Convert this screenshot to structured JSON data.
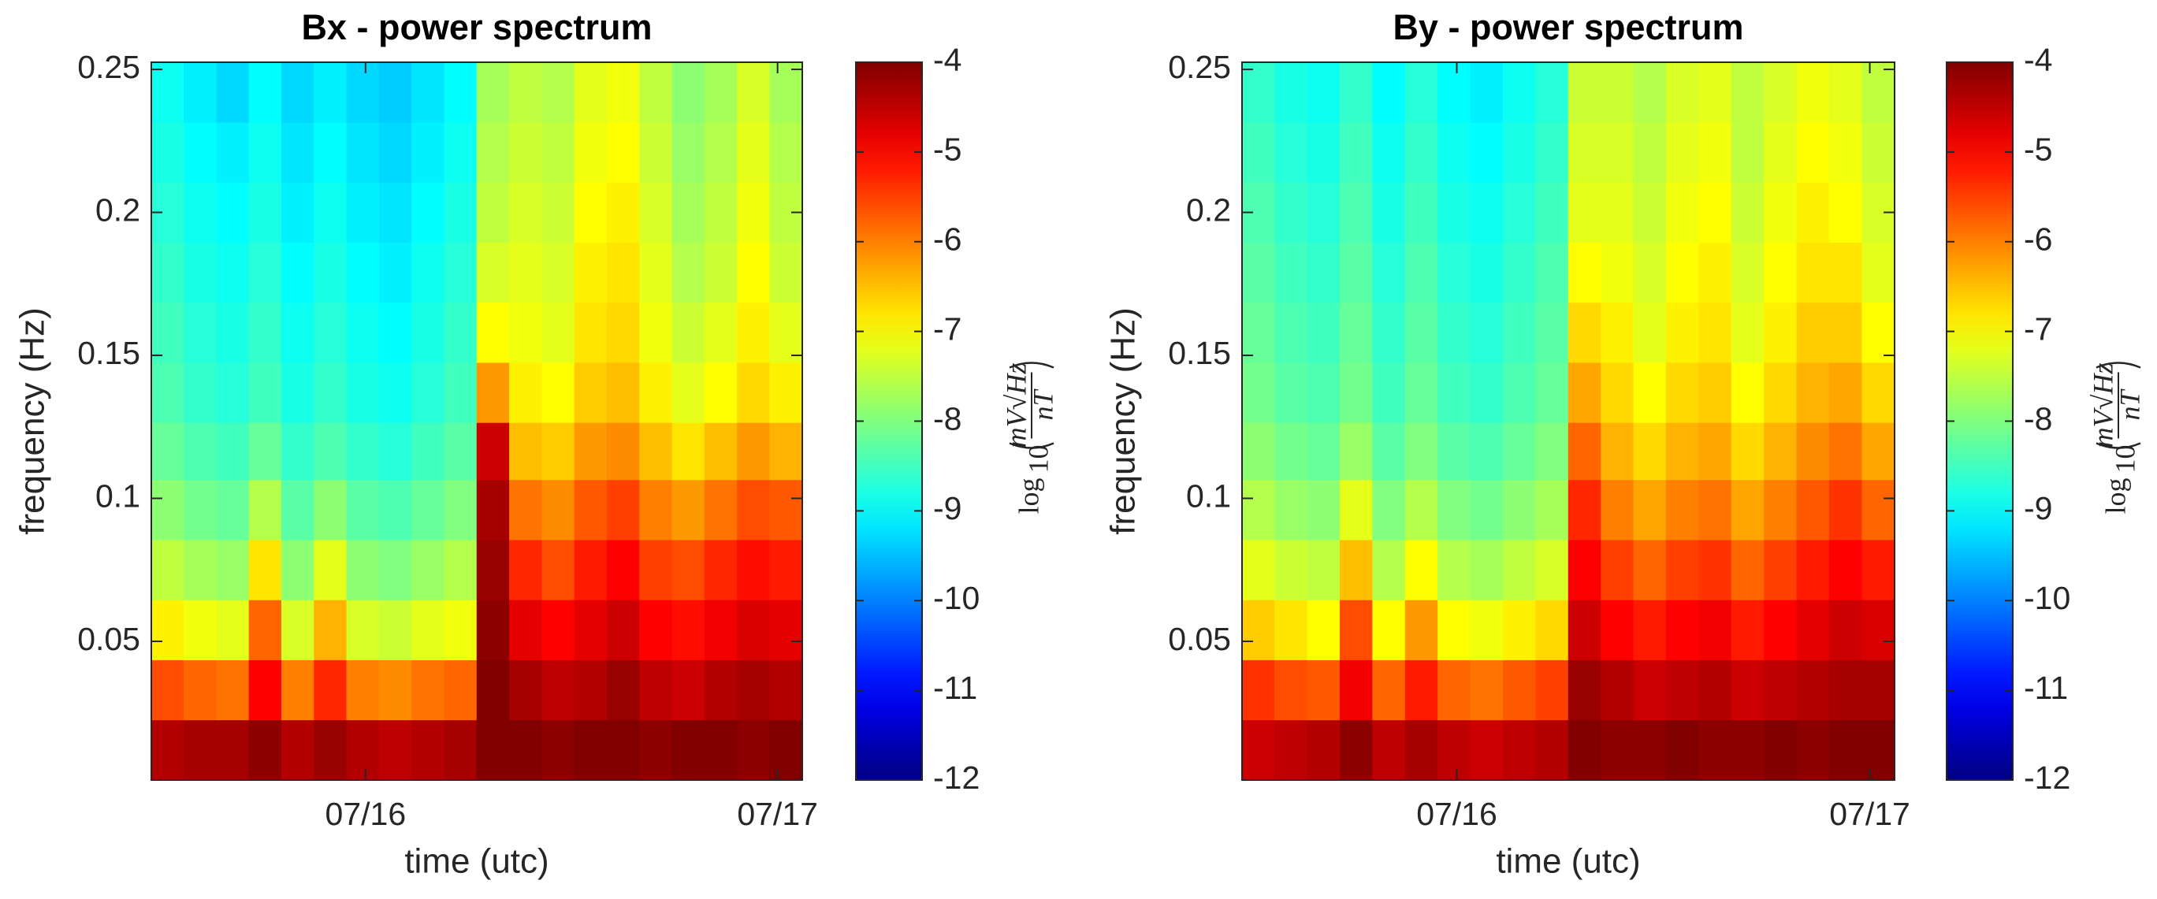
{
  "chart_data": [
    {
      "type": "heatmap",
      "title": "Bx - power spectrum",
      "x_label": "time (utc)",
      "y_label": "frequency (Hz)",
      "colormap": "jet",
      "x": [
        15.52,
        15.599,
        15.678,
        15.757,
        15.836,
        15.915,
        15.994,
        16.073,
        16.152,
        16.231,
        16.31,
        16.389,
        16.468,
        16.547,
        16.626,
        16.705,
        16.784,
        16.863,
        16.942,
        17.021
      ],
      "y": [
        0.012,
        0.033,
        0.054,
        0.075,
        0.096,
        0.117,
        0.137,
        0.158,
        0.179,
        0.2,
        0.221,
        0.242
      ],
      "z": [
        [
          -4.4,
          -4.3,
          -4.3,
          -4.1,
          -4.4,
          -4.2,
          -4.4,
          -4.5,
          -4.4,
          -4.3,
          -4.0,
          -4.0,
          -4.1,
          -4.0,
          -4.0,
          -4.1,
          -4.0,
          -4.0,
          -4.1,
          -4.0
        ],
        [
          -5.6,
          -5.8,
          -5.9,
          -5.0,
          -6.0,
          -5.3,
          -6.0,
          -6.1,
          -5.9,
          -5.8,
          -4.0,
          -4.3,
          -4.5,
          -4.4,
          -4.2,
          -4.5,
          -4.6,
          -4.4,
          -4.3,
          -4.4
        ],
        [
          -6.9,
          -7.1,
          -7.2,
          -5.8,
          -7.3,
          -6.4,
          -7.3,
          -7.4,
          -7.2,
          -7.1,
          -4.1,
          -4.8,
          -5.0,
          -4.8,
          -4.6,
          -5.0,
          -5.1,
          -4.9,
          -4.7,
          -4.8
        ],
        [
          -7.5,
          -7.7,
          -7.8,
          -6.8,
          -7.9,
          -7.2,
          -7.9,
          -8.0,
          -7.8,
          -7.6,
          -4.2,
          -5.3,
          -5.6,
          -5.2,
          -5.0,
          -5.5,
          -5.6,
          -5.3,
          -5.1,
          -5.2
        ],
        [
          -7.9,
          -8.1,
          -8.2,
          -7.6,
          -8.3,
          -7.9,
          -8.3,
          -8.4,
          -8.2,
          -8.0,
          -4.3,
          -5.9,
          -6.1,
          -5.7,
          -5.5,
          -6.0,
          -6.2,
          -5.9,
          -5.6,
          -5.7
        ],
        [
          -8.2,
          -8.4,
          -8.5,
          -8.2,
          -8.6,
          -8.4,
          -8.6,
          -8.7,
          -8.5,
          -8.3,
          -4.6,
          -6.5,
          -6.6,
          -6.2,
          -6.1,
          -6.5,
          -6.8,
          -6.5,
          -6.2,
          -6.4
        ],
        [
          -8.4,
          -8.6,
          -8.7,
          -8.5,
          -8.8,
          -8.6,
          -8.8,
          -8.9,
          -8.7,
          -8.5,
          -6.2,
          -6.9,
          -7.0,
          -6.6,
          -6.5,
          -6.9,
          -7.2,
          -7.0,
          -6.7,
          -6.9
        ],
        [
          -8.5,
          -8.7,
          -8.8,
          -8.6,
          -8.9,
          -8.7,
          -8.9,
          -9.0,
          -8.8,
          -8.6,
          -7.0,
          -7.1,
          -7.2,
          -6.8,
          -6.7,
          -7.1,
          -7.4,
          -7.2,
          -6.9,
          -7.2
        ],
        [
          -8.6,
          -8.8,
          -8.9,
          -8.7,
          -9.0,
          -8.8,
          -9.0,
          -9.1,
          -8.9,
          -8.7,
          -7.3,
          -7.2,
          -7.3,
          -6.9,
          -6.8,
          -7.2,
          -7.6,
          -7.4,
          -7.0,
          -7.4
        ],
        [
          -8.7,
          -8.9,
          -9.0,
          -8.8,
          -9.1,
          -8.9,
          -9.1,
          -9.2,
          -9.0,
          -8.8,
          -7.5,
          -7.3,
          -7.4,
          -7.0,
          -6.9,
          -7.3,
          -7.7,
          -7.5,
          -7.1,
          -7.5
        ],
        [
          -8.8,
          -9.0,
          -9.1,
          -8.9,
          -9.2,
          -9.0,
          -9.2,
          -9.3,
          -9.1,
          -8.9,
          -7.6,
          -7.4,
          -7.5,
          -7.1,
          -7.0,
          -7.4,
          -7.8,
          -7.6,
          -7.2,
          -7.6
        ],
        [
          -8.9,
          -9.1,
          -9.3,
          -9.0,
          -9.3,
          -9.1,
          -9.3,
          -9.4,
          -9.2,
          -9.0,
          -7.7,
          -7.5,
          -7.6,
          -7.2,
          -7.1,
          -7.5,
          -7.9,
          -7.7,
          -7.3,
          -7.7
        ]
      ],
      "xlim": [
        15.48,
        17.06
      ],
      "ylim": [
        0.0015,
        0.2525
      ],
      "xticks": [
        {
          "value": 16,
          "label": "07/16"
        },
        {
          "value": 17,
          "label": "07/17"
        }
      ],
      "yticks": [
        0.05,
        0.1,
        0.15,
        0.2,
        0.25
      ],
      "colorbar": {
        "clim": [
          -12,
          -4
        ],
        "ticks": [
          -12,
          -11,
          -10,
          -9,
          -8,
          -7,
          -6,
          -5,
          -4
        ],
        "label": {
          "function": "log",
          "base": "10",
          "numerator": "mV√Hz",
          "denominator": "nT"
        }
      }
    },
    {
      "type": "heatmap",
      "title": "By - power spectrum",
      "x_label": "time (utc)",
      "y_label": "frequency (Hz)",
      "colormap": "jet",
      "x": [
        15.52,
        15.599,
        15.678,
        15.757,
        15.836,
        15.915,
        15.994,
        16.073,
        16.152,
        16.231,
        16.31,
        16.389,
        16.468,
        16.547,
        16.626,
        16.705,
        16.784,
        16.863,
        16.942,
        17.021
      ],
      "y": [
        0.012,
        0.033,
        0.054,
        0.075,
        0.096,
        0.117,
        0.137,
        0.158,
        0.179,
        0.2,
        0.221,
        0.242
      ],
      "z": [
        [
          -4.6,
          -4.5,
          -4.4,
          -4.1,
          -4.5,
          -4.3,
          -4.5,
          -4.6,
          -4.5,
          -4.4,
          -4.0,
          -4.1,
          -4.1,
          -4.0,
          -4.1,
          -4.1,
          -4.0,
          -4.1,
          -4.0,
          -4.0
        ],
        [
          -5.4,
          -5.6,
          -5.7,
          -4.9,
          -5.8,
          -5.2,
          -5.8,
          -5.9,
          -5.7,
          -5.5,
          -4.2,
          -4.4,
          -4.6,
          -4.5,
          -4.4,
          -4.6,
          -4.5,
          -4.4,
          -4.3,
          -4.3
        ],
        [
          -6.6,
          -6.8,
          -7.0,
          -5.6,
          -7.0,
          -6.2,
          -7.0,
          -7.1,
          -6.9,
          -6.7,
          -4.6,
          -5.0,
          -5.2,
          -5.0,
          -4.9,
          -5.2,
          -5.0,
          -4.8,
          -4.6,
          -4.7
        ],
        [
          -7.2,
          -7.4,
          -7.5,
          -6.5,
          -7.6,
          -7.0,
          -7.6,
          -7.7,
          -7.5,
          -7.3,
          -5.0,
          -5.5,
          -5.8,
          -5.5,
          -5.4,
          -5.8,
          -5.5,
          -5.2,
          -5.0,
          -5.2
        ],
        [
          -7.6,
          -7.8,
          -7.9,
          -7.2,
          -8.0,
          -7.6,
          -8.0,
          -8.1,
          -7.9,
          -7.7,
          -5.3,
          -6.0,
          -6.3,
          -6.0,
          -5.9,
          -6.3,
          -6.0,
          -5.7,
          -5.4,
          -5.8
        ],
        [
          -7.9,
          -8.1,
          -8.2,
          -7.8,
          -8.3,
          -8.0,
          -8.3,
          -8.4,
          -8.2,
          -8.0,
          -5.8,
          -6.4,
          -6.7,
          -6.4,
          -6.3,
          -6.7,
          -6.4,
          -6.1,
          -5.9,
          -6.3
        ],
        [
          -8.1,
          -8.3,
          -8.4,
          -8.1,
          -8.5,
          -8.2,
          -8.5,
          -8.6,
          -8.4,
          -8.2,
          -6.3,
          -6.7,
          -7.0,
          -6.7,
          -6.6,
          -7.0,
          -6.7,
          -6.4,
          -6.3,
          -6.7
        ],
        [
          -8.2,
          -8.4,
          -8.5,
          -8.2,
          -8.6,
          -8.3,
          -8.6,
          -8.7,
          -8.5,
          -8.3,
          -6.7,
          -6.9,
          -7.2,
          -6.9,
          -6.8,
          -7.2,
          -6.9,
          -6.6,
          -6.6,
          -7.0
        ],
        [
          -8.3,
          -8.5,
          -8.6,
          -8.3,
          -8.7,
          -8.4,
          -8.7,
          -8.8,
          -8.6,
          -8.4,
          -7.0,
          -7.1,
          -7.3,
          -7.0,
          -6.9,
          -7.3,
          -7.0,
          -6.8,
          -6.8,
          -7.2
        ],
        [
          -8.4,
          -8.6,
          -8.7,
          -8.4,
          -8.8,
          -8.5,
          -8.8,
          -8.9,
          -8.7,
          -8.5,
          -7.2,
          -7.2,
          -7.4,
          -7.1,
          -7.0,
          -7.4,
          -7.1,
          -6.9,
          -7.0,
          -7.3
        ],
        [
          -8.5,
          -8.7,
          -8.8,
          -8.5,
          -8.9,
          -8.6,
          -8.9,
          -9.0,
          -8.8,
          -8.6,
          -7.3,
          -7.3,
          -7.5,
          -7.2,
          -7.1,
          -7.5,
          -7.2,
          -7.0,
          -7.1,
          -7.4
        ],
        [
          -8.6,
          -8.8,
          -8.9,
          -8.6,
          -9.0,
          -8.7,
          -9.0,
          -9.1,
          -8.9,
          -8.7,
          -7.4,
          -7.4,
          -7.6,
          -7.3,
          -7.2,
          -7.5,
          -7.3,
          -7.1,
          -7.2,
          -7.5
        ]
      ],
      "xlim": [
        15.48,
        17.06
      ],
      "ylim": [
        0.0015,
        0.2525
      ],
      "xticks": [
        {
          "value": 16,
          "label": "07/16"
        },
        {
          "value": 17,
          "label": "07/17"
        }
      ],
      "yticks": [
        0.05,
        0.1,
        0.15,
        0.2,
        0.25
      ],
      "colorbar": {
        "clim": [
          -12,
          -4
        ],
        "ticks": [
          -12,
          -11,
          -10,
          -9,
          -8,
          -7,
          -6,
          -5,
          -4
        ],
        "label": {
          "function": "log",
          "base": "10",
          "numerator": "mV√Hz",
          "denominator": "nT"
        }
      }
    }
  ]
}
